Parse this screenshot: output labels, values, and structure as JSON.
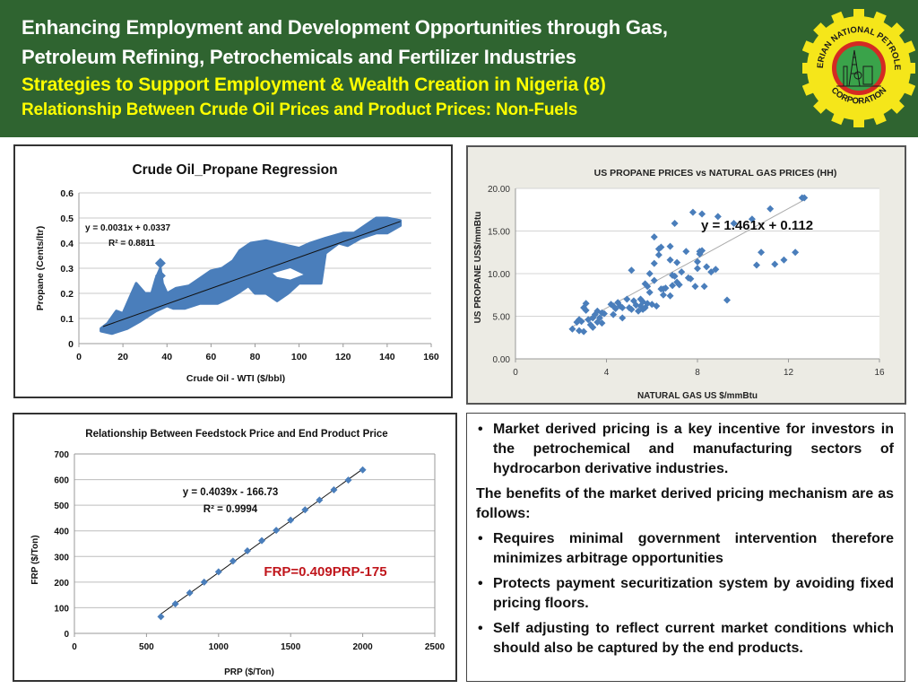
{
  "header": {
    "title_line1": "Enhancing Employment and Development Opportunities through Gas,",
    "title_line2": "Petroleum Refining, Petrochemicals and Fertilizer Industries",
    "subtitle": "Strategies to Support Employment  & Wealth Creation in Nigeria (8)",
    "section": "Relationship Between Crude Oil Prices and Product Prices: Non-Fuels",
    "colors": {
      "background": "#2f6430",
      "title": "#ffffff",
      "subtitle": "#ffff00"
    }
  },
  "logo": {
    "text_top": "NIGERIAN NATIONAL PETROLEUM",
    "text_bottom": "CORPORATION",
    "colors": {
      "gear": "#f5e61a",
      "ring": "#d42a23",
      "center": "#3aa34a"
    }
  },
  "chart_data": [
    {
      "type": "scatter",
      "title": "Crude Oil_Propane Regression",
      "xlabel": "Crude Oil - WTI ($/bbl)",
      "ylabel": "Propane (Cents/ltr)",
      "xlim": [
        0,
        160
      ],
      "ylim": [
        0,
        0.6
      ],
      "xticks": [
        "0",
        "20",
        "40",
        "60",
        "80",
        "100",
        "120",
        "140",
        "160"
      ],
      "yticks": [
        "0",
        "0.1",
        "0.2",
        "0.3",
        "0.4",
        "0.5",
        "0.6"
      ],
      "grid": true,
      "marker_color": "#4a7ebb",
      "trendline": {
        "slope": 0.0031,
        "intercept": 0.0337,
        "x_range": [
          11,
          146
        ]
      },
      "equation": "y = 0.0031x + 0.0337",
      "r_squared": "R² = 0.8811",
      "cloud_upper": [
        [
          10,
          0.06
        ],
        [
          13,
          0.08
        ],
        [
          17,
          0.13
        ],
        [
          20,
          0.12
        ],
        [
          24,
          0.2
        ],
        [
          26,
          0.24
        ],
        [
          30,
          0.2
        ],
        [
          33,
          0.2
        ],
        [
          35,
          0.26
        ],
        [
          37,
          0.3
        ],
        [
          38,
          0.24
        ],
        [
          40,
          0.2
        ],
        [
          44,
          0.22
        ],
        [
          50,
          0.23
        ],
        [
          55,
          0.26
        ],
        [
          60,
          0.29
        ],
        [
          65,
          0.3
        ],
        [
          70,
          0.33
        ],
        [
          73,
          0.37
        ],
        [
          78,
          0.4
        ],
        [
          85,
          0.41
        ],
        [
          90,
          0.4
        ],
        [
          95,
          0.39
        ],
        [
          100,
          0.38
        ],
        [
          105,
          0.4
        ],
        [
          112,
          0.42
        ],
        [
          120,
          0.44
        ],
        [
          125,
          0.44
        ],
        [
          130,
          0.47
        ],
        [
          135,
          0.5
        ],
        [
          140,
          0.5
        ],
        [
          146,
          0.49
        ]
      ],
      "cloud_lower": [
        [
          146,
          0.47
        ],
        [
          140,
          0.44
        ],
        [
          135,
          0.44
        ],
        [
          128,
          0.42
        ],
        [
          122,
          0.39
        ],
        [
          118,
          0.4
        ],
        [
          112,
          0.36
        ],
        [
          110,
          0.24
        ],
        [
          105,
          0.24
        ],
        [
          100,
          0.24
        ],
        [
          95,
          0.2
        ],
        [
          90,
          0.17
        ],
        [
          85,
          0.2
        ],
        [
          80,
          0.2
        ],
        [
          77,
          0.23
        ],
        [
          72,
          0.2
        ],
        [
          68,
          0.18
        ],
        [
          63,
          0.16
        ],
        [
          55,
          0.16
        ],
        [
          48,
          0.14
        ],
        [
          43,
          0.14
        ],
        [
          40,
          0.15
        ],
        [
          35,
          0.13
        ],
        [
          28,
          0.09
        ],
        [
          22,
          0.06
        ],
        [
          15,
          0.04
        ],
        [
          10,
          0.05
        ]
      ],
      "outliers": [
        [
          37,
          0.32
        ],
        [
          37,
          0.27
        ]
      ]
    },
    {
      "type": "scatter",
      "title": "US PROPANE PRICES vs NATURAL GAS PRICES (HH)",
      "xlabel": "NATURAL GAS US $/mmBtu",
      "ylabel": "US PROPANE US$/mmBtu",
      "xlim": [
        0,
        16
      ],
      "ylim": [
        0,
        20
      ],
      "xticks": [
        "0",
        "4",
        "8",
        "12",
        "16"
      ],
      "yticks": [
        "0.00",
        "5.00",
        "10.00",
        "15.00",
        "20.00"
      ],
      "grid": true,
      "marker_color": "#4a7ebb",
      "trendline": {
        "slope": 1.461,
        "intercept": 0.112,
        "x_range": [
          2.5,
          12.7
        ]
      },
      "equation": "y = 1.461x + 0.112",
      "points": [
        [
          2.5,
          3.5
        ],
        [
          2.7,
          4.3
        ],
        [
          2.8,
          4.6
        ],
        [
          2.8,
          3.3
        ],
        [
          2.9,
          4.4
        ],
        [
          3.0,
          3.2
        ],
        [
          3.0,
          6.0
        ],
        [
          3.1,
          5.7
        ],
        [
          3.1,
          6.5
        ],
        [
          3.2,
          4.6
        ],
        [
          3.3,
          4.0
        ],
        [
          3.4,
          3.7
        ],
        [
          3.4,
          4.8
        ],
        [
          3.5,
          5.2
        ],
        [
          3.6,
          4.3
        ],
        [
          3.6,
          5.6
        ],
        [
          3.7,
          4.8
        ],
        [
          3.8,
          4.2
        ],
        [
          3.8,
          5.4
        ],
        [
          3.9,
          5.3
        ],
        [
          4.2,
          6.4
        ],
        [
          4.3,
          5.2
        ],
        [
          4.3,
          6.2
        ],
        [
          4.4,
          5.9
        ],
        [
          4.5,
          6.6
        ],
        [
          4.6,
          6.2
        ],
        [
          4.7,
          6.0
        ],
        [
          4.7,
          4.8
        ],
        [
          4.9,
          7.0
        ],
        [
          5.0,
          6.0
        ],
        [
          5.1,
          5.8
        ],
        [
          5.1,
          10.4
        ],
        [
          5.2,
          6.8
        ],
        [
          5.3,
          6.3
        ],
        [
          5.4,
          5.6
        ],
        [
          5.5,
          7.0
        ],
        [
          5.5,
          6.2
        ],
        [
          5.6,
          5.8
        ],
        [
          5.6,
          6.7
        ],
        [
          5.7,
          6.0
        ],
        [
          5.7,
          8.8
        ],
        [
          5.8,
          6.5
        ],
        [
          5.8,
          8.5
        ],
        [
          5.9,
          7.8
        ],
        [
          5.9,
          10.0
        ],
        [
          6.0,
          6.4
        ],
        [
          6.1,
          9.2
        ],
        [
          6.1,
          11.2
        ],
        [
          6.1,
          14.3
        ],
        [
          6.2,
          6.2
        ],
        [
          6.3,
          12.2
        ],
        [
          6.3,
          12.9
        ],
        [
          6.4,
          13.1
        ],
        [
          6.4,
          8.2
        ],
        [
          6.5,
          7.5
        ],
        [
          6.5,
          8.2
        ],
        [
          6.6,
          8.3
        ],
        [
          6.8,
          7.4
        ],
        [
          6.8,
          13.2
        ],
        [
          6.8,
          11.6
        ],
        [
          6.9,
          8.6
        ],
        [
          6.9,
          9.8
        ],
        [
          7.0,
          15.9
        ],
        [
          7.0,
          9.7
        ],
        [
          7.1,
          11.3
        ],
        [
          7.1,
          9.0
        ],
        [
          7.2,
          8.7
        ],
        [
          7.3,
          10.2
        ],
        [
          7.5,
          12.6
        ],
        [
          7.6,
          9.5
        ],
        [
          7.7,
          9.4
        ],
        [
          7.8,
          17.2
        ],
        [
          7.9,
          8.5
        ],
        [
          8.0,
          10.6
        ],
        [
          8.0,
          11.4
        ],
        [
          8.1,
          12.6
        ],
        [
          8.1,
          12.3
        ],
        [
          8.2,
          17.0
        ],
        [
          8.2,
          12.7
        ],
        [
          8.3,
          8.5
        ],
        [
          8.4,
          10.8
        ],
        [
          8.6,
          10.2
        ],
        [
          8.8,
          10.5
        ],
        [
          8.9,
          16.7
        ],
        [
          9.3,
          6.9
        ],
        [
          9.6,
          15.9
        ],
        [
          10.4,
          16.4
        ],
        [
          10.6,
          11.0
        ],
        [
          10.8,
          12.5
        ],
        [
          11.2,
          17.6
        ],
        [
          11.4,
          11.1
        ],
        [
          11.8,
          11.6
        ],
        [
          12.3,
          12.5
        ],
        [
          12.6,
          18.9
        ],
        [
          12.7,
          18.9
        ]
      ]
    },
    {
      "type": "scatter",
      "title": "Relationship Between Feedstock Price and End Product Price",
      "xlabel": "PRP ($/Ton)",
      "ylabel": "FRP ($/Ton)",
      "xlim": [
        0,
        2500
      ],
      "ylim": [
        0,
        700
      ],
      "xticks": [
        "0",
        "500",
        "1000",
        "1500",
        "2000",
        "2500"
      ],
      "yticks": [
        "0",
        "100",
        "200",
        "300",
        "400",
        "500",
        "600",
        "700"
      ],
      "grid": true,
      "marker_color": "#4a7ebb",
      "x": [
        600,
        700,
        800,
        900,
        1000,
        1100,
        1200,
        1300,
        1400,
        1500,
        1600,
        1700,
        1800,
        1900,
        2000
      ],
      "y": [
        65,
        115,
        158,
        200,
        240,
        282,
        322,
        362,
        402,
        442,
        482,
        520,
        560,
        598,
        638
      ],
      "trendline": {
        "slope": 0.4039,
        "intercept": -166.73,
        "x_range": [
          600,
          2000
        ]
      },
      "equation": "y = 0.4039x - 166.73",
      "r_squared": "R² = 0.9994",
      "annotation": "FRP=0.409PRP-175",
      "annotation_color": "#c0161c"
    }
  ],
  "textbox": {
    "bullet1": "Market derived pricing is a key incentive for investors in the petrochemical and manufacturing sectors of hydrocarbon derivative industries.",
    "paragraph": "The benefits of the market derived pricing mechanism are as follows:",
    "bullet2": "Requires minimal government intervention therefore minimizes arbitrage opportunities",
    "bullet3": "Protects payment securitization system by avoiding fixed pricing floors.",
    "bullet4": "Self adjusting to reflect current market conditions which should also be captured by the end products.",
    "bullet_glyph": "•"
  }
}
